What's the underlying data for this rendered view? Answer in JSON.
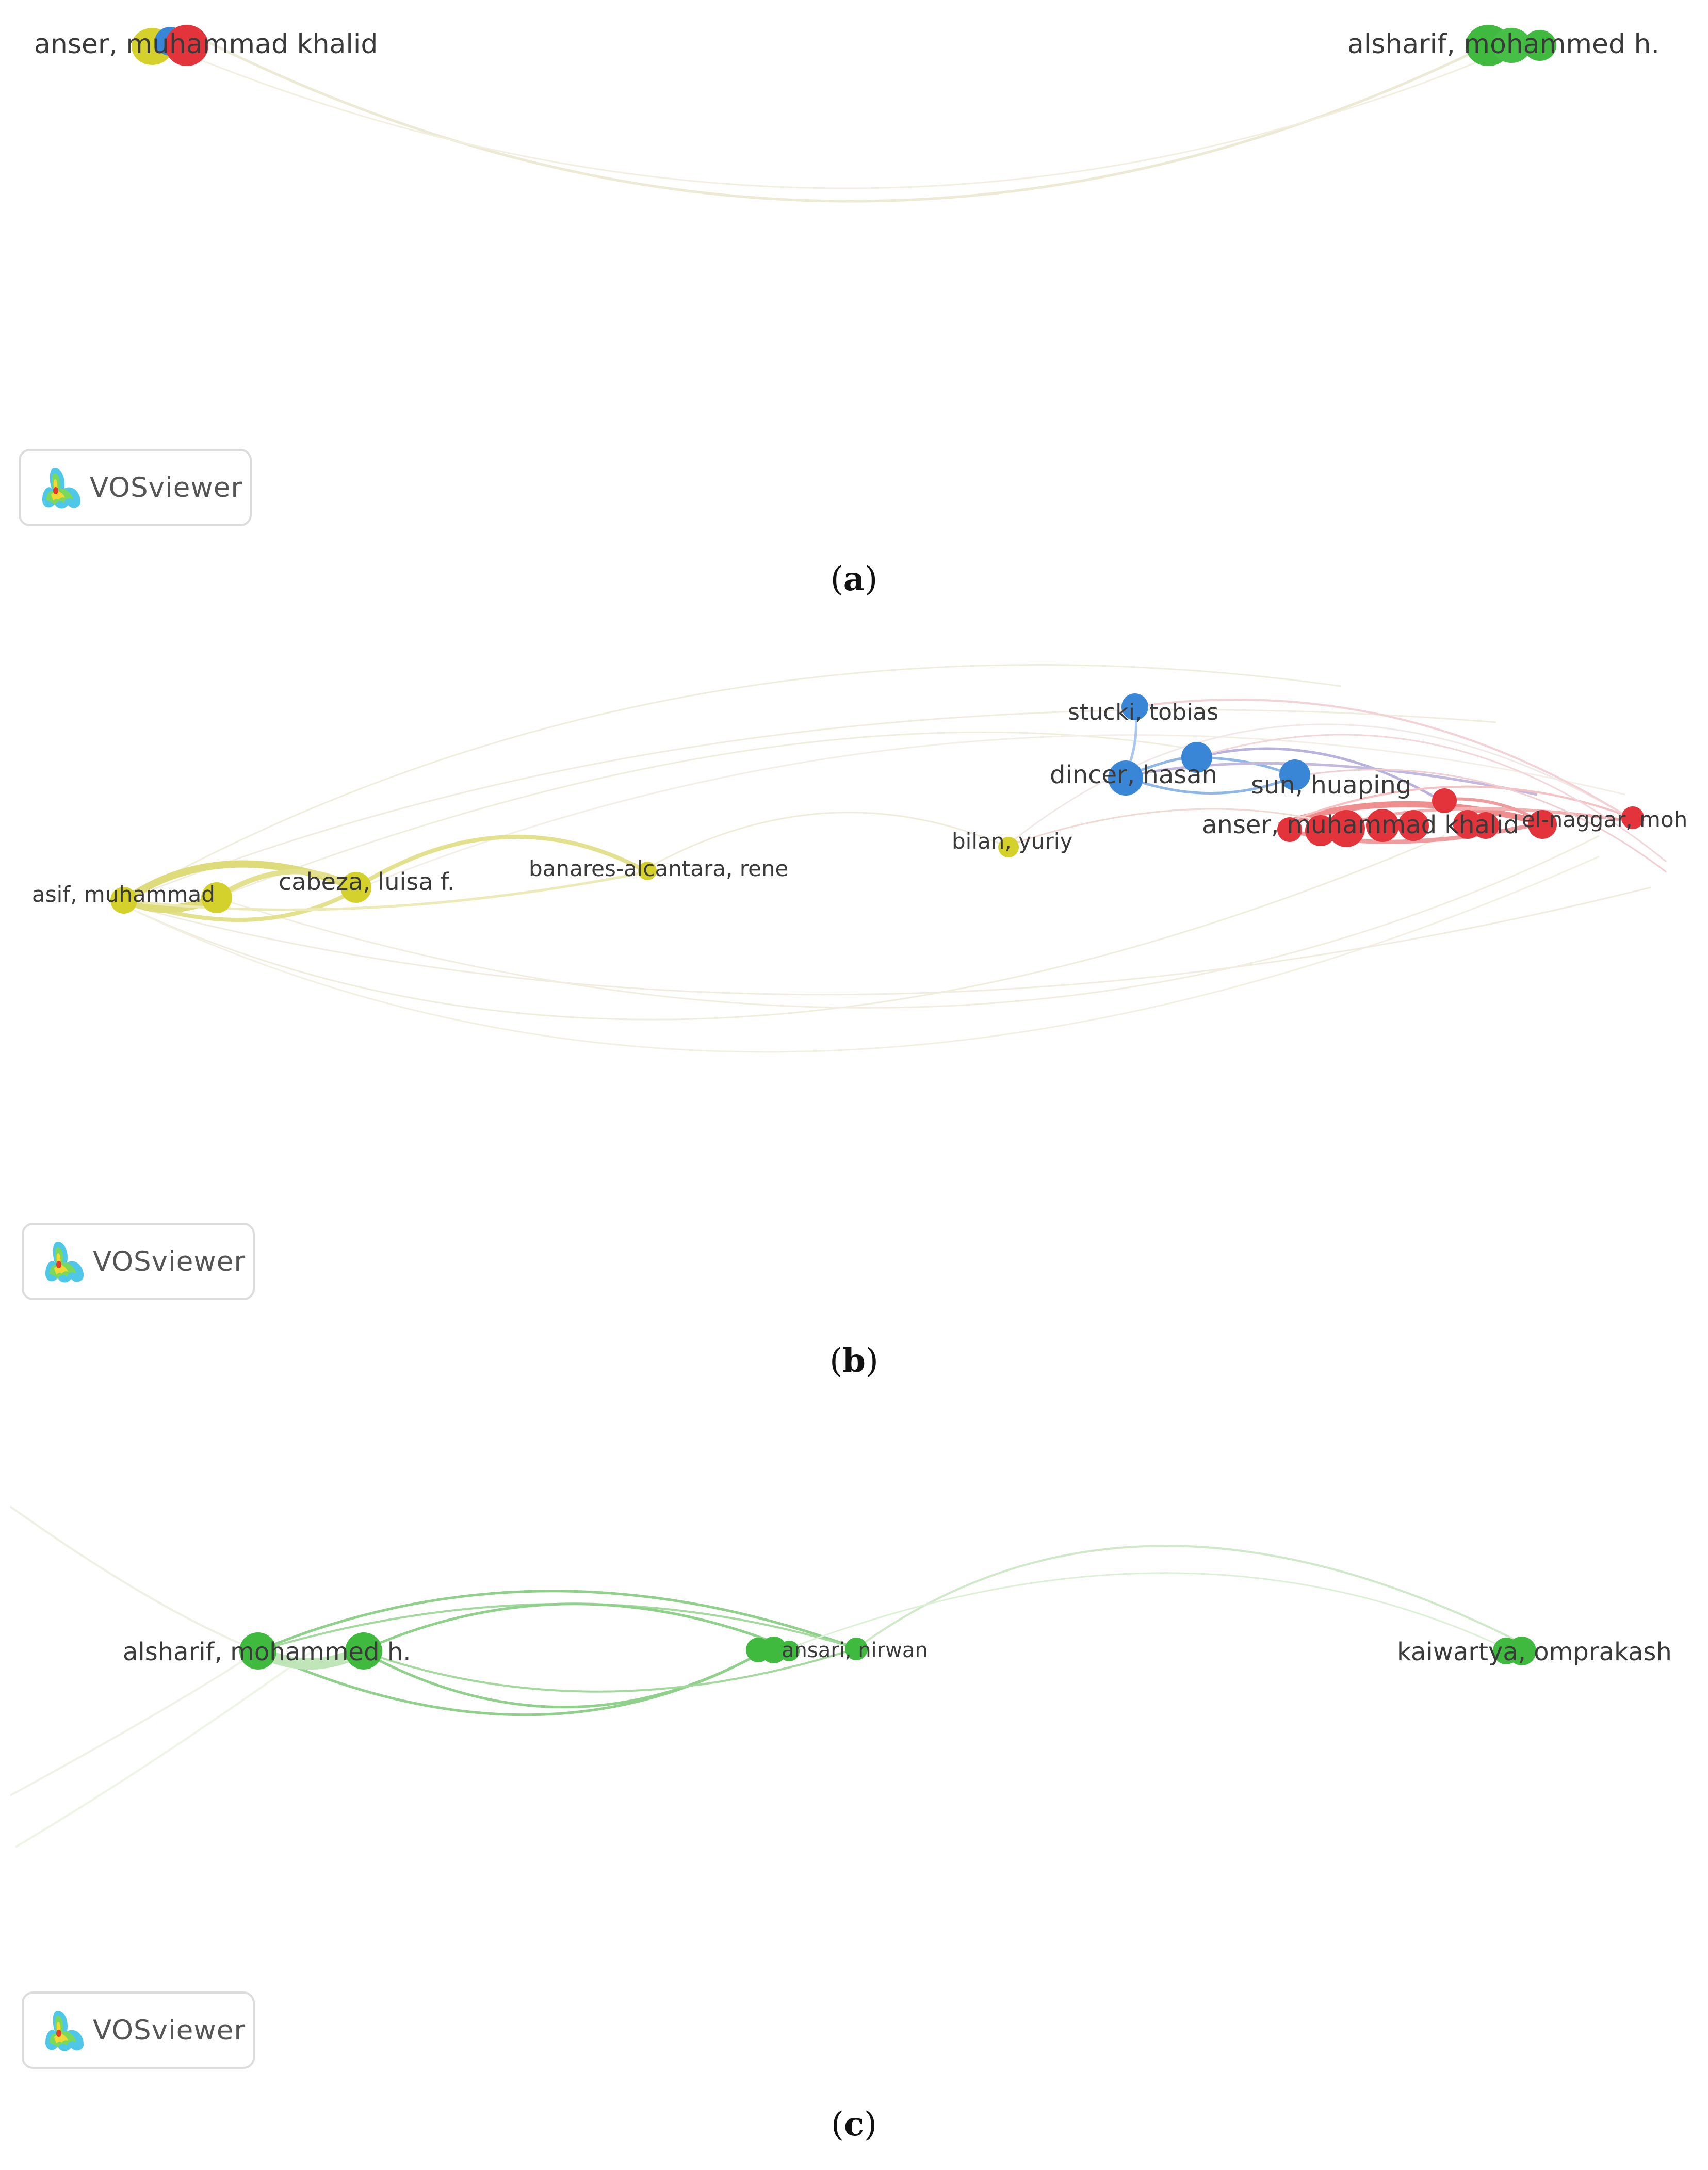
{
  "logo_text": "VOSviewer",
  "panels": [
    {
      "id": "a",
      "caption_open": "(",
      "caption_letter": "a",
      "caption_close": ")",
      "labels": [
        "anser, muhammad khalid",
        "alsharif, mohammed h."
      ],
      "clusters": {
        "red": "#e3343c",
        "yellow": "#d4d12c",
        "blue": "#3a86d6",
        "green": "#3fba3f"
      }
    },
    {
      "id": "b",
      "caption_open": "(",
      "caption_letter": "b",
      "caption_close": ")",
      "labels": [
        "stucki, tobias",
        "dincer, hasan",
        "sun, huaping",
        "anser, muhammad khalid",
        "el-naggar, moh",
        "bilan, yuriy",
        "banares-alcantara, rene",
        "cabeza, luisa f.",
        "asif, muhammad"
      ]
    },
    {
      "id": "c",
      "caption_open": "(",
      "caption_letter": "c",
      "caption_close": ")",
      "labels": [
        "alsharif, mohammed h.",
        "ansari, nirwan",
        "kaiwartya, omprakash"
      ]
    }
  ]
}
